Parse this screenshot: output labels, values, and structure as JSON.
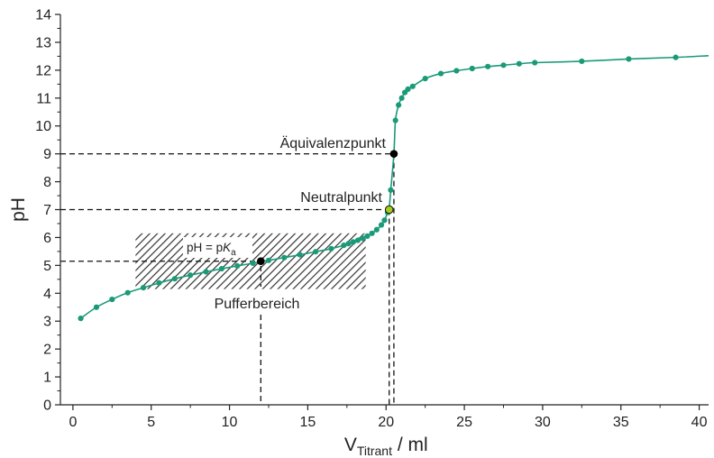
{
  "chart_data": {
    "type": "scatter",
    "title": "",
    "xlabel": {
      "main": "V",
      "sub": "Titrant",
      "unit": " / ml"
    },
    "ylabel": "pH",
    "xlim": [
      -0.8,
      40.6
    ],
    "ylim": [
      0,
      14
    ],
    "xticks": [
      0,
      5,
      10,
      15,
      20,
      25,
      30,
      35,
      40
    ],
    "yticks": [
      0,
      1,
      2,
      3,
      4,
      5,
      6,
      7,
      8,
      9,
      10,
      11,
      12,
      13,
      14
    ],
    "grid": false,
    "series": [
      {
        "color": "#1a9a78",
        "points": [
          [
            0.5,
            3.1
          ],
          [
            1.5,
            3.5
          ],
          [
            2.5,
            3.78
          ],
          [
            3.5,
            4.02
          ],
          [
            4.5,
            4.2
          ],
          [
            5.5,
            4.37
          ],
          [
            6.5,
            4.52
          ],
          [
            7.5,
            4.65
          ],
          [
            8.5,
            4.77
          ],
          [
            9.5,
            4.88
          ],
          [
            10.5,
            4.98
          ],
          [
            11.5,
            5.08
          ],
          [
            12.5,
            5.18
          ],
          [
            13.5,
            5.28
          ],
          [
            14.5,
            5.38
          ],
          [
            15.5,
            5.49
          ],
          [
            16.5,
            5.6
          ],
          [
            17.3,
            5.72
          ],
          [
            17.6,
            5.78
          ],
          [
            17.9,
            5.84
          ],
          [
            18.2,
            5.9
          ],
          [
            18.5,
            5.97
          ],
          [
            18.8,
            6.05
          ],
          [
            19.1,
            6.15
          ],
          [
            19.4,
            6.28
          ],
          [
            19.7,
            6.45
          ],
          [
            19.9,
            6.62
          ],
          [
            20.1,
            6.9
          ],
          [
            20.2,
            7.05
          ],
          [
            20.3,
            7.7
          ],
          [
            20.5,
            9.0
          ],
          [
            20.6,
            10.2
          ],
          [
            20.8,
            10.75
          ],
          [
            21.0,
            11.0
          ],
          [
            21.2,
            11.2
          ],
          [
            21.4,
            11.32
          ],
          [
            21.7,
            11.42
          ],
          [
            22.5,
            11.7
          ],
          [
            23.5,
            11.88
          ],
          [
            24.5,
            11.98
          ],
          [
            25.5,
            12.06
          ],
          [
            26.5,
            12.13
          ],
          [
            27.5,
            12.18
          ],
          [
            28.5,
            12.23
          ],
          [
            29.5,
            12.27
          ],
          [
            32.5,
            12.32
          ],
          [
            35.5,
            12.4
          ],
          [
            38.5,
            12.46
          ]
        ],
        "line_end": [
          40.6,
          12.52
        ]
      }
    ],
    "markers": {
      "aequivalenzpunkt": {
        "x": 20.5,
        "y": 9.0,
        "color": "#000000",
        "label": "Äquivalenzpunkt"
      },
      "neutralpunkt": {
        "x": 20.2,
        "y": 7.0,
        "color": "#a6cc1a",
        "label": "Neutralpunkt"
      },
      "halbaequivalenz": {
        "x": 12.0,
        "y": 5.15,
        "color": "#000000",
        "label_main": "pH = p",
        "label_k": "K",
        "label_sub": "a"
      }
    },
    "buffer_region": {
      "x_range": [
        4.0,
        18.7
      ],
      "y_range": [
        4.15,
        6.15
      ],
      "label": "Pufferbereich"
    }
  }
}
